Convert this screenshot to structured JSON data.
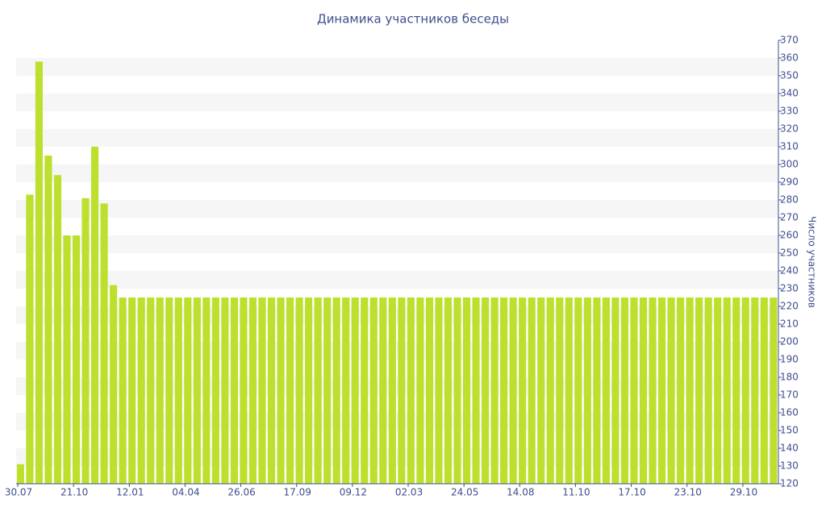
{
  "chart_data": {
    "type": "bar",
    "title": "Динамика участников беседы",
    "y_label": "Число участников",
    "categories": [
      "30.07",
      null,
      null,
      null,
      null,
      null,
      "21.10",
      null,
      null,
      null,
      null,
      null,
      "12.01",
      null,
      null,
      null,
      null,
      null,
      "04.04",
      null,
      null,
      null,
      null,
      null,
      "26.06",
      null,
      null,
      null,
      null,
      null,
      "17.09",
      null,
      null,
      null,
      null,
      null,
      "09.12",
      null,
      null,
      null,
      null,
      null,
      "02.03",
      null,
      null,
      null,
      null,
      null,
      "24.05",
      null,
      null,
      null,
      null,
      null,
      "14.08",
      null,
      null,
      null,
      null,
      null,
      "11.10",
      null,
      null,
      null,
      null,
      null,
      "17.10",
      null,
      null,
      null,
      null,
      null,
      "23.10",
      null,
      null,
      null,
      null,
      null,
      "29.10",
      null,
      null,
      null
    ],
    "values": [
      131,
      283,
      358,
      305,
      294,
      260,
      260,
      281,
      310,
      278,
      232,
      225,
      225,
      225,
      225,
      225,
      225,
      225,
      225,
      225,
      225,
      225,
      225,
      225,
      225,
      225,
      225,
      225,
      225,
      225,
      225,
      225,
      225,
      225,
      225,
      225,
      225,
      225,
      225,
      225,
      225,
      225,
      225,
      225,
      225,
      225,
      225,
      225,
      225,
      225,
      225,
      225,
      225,
      225,
      225,
      225,
      225,
      225,
      225,
      225,
      225,
      225,
      225,
      225,
      225,
      225,
      225,
      225,
      225,
      225,
      225,
      225,
      225,
      225,
      225,
      225,
      225,
      225,
      225,
      225,
      225,
      225
    ],
    "color": "#bce02d",
    "ylim": [
      120,
      370
    ],
    "yticks": [
      120,
      130,
      140,
      150,
      160,
      170,
      180,
      190,
      200,
      210,
      220,
      230,
      240,
      250,
      260,
      270,
      280,
      290,
      300,
      310,
      320,
      330,
      340,
      350,
      360,
      370
    ],
    "y_axis_side": "right",
    "grid": true
  }
}
